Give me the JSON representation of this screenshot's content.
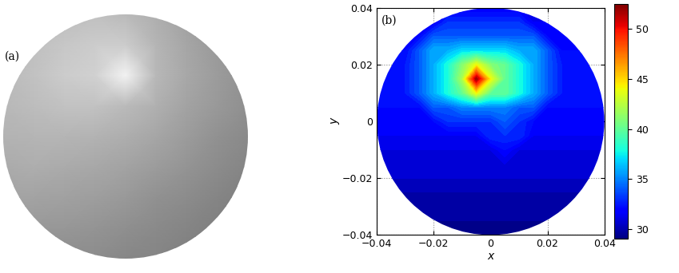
{
  "chart_data": [
    {
      "type": "image",
      "title": "(a)",
      "clim": [
        0,
        1
      ],
      "cells": [
        [
          0.55,
          0.55,
          0.55,
          0.55,
          0.53,
          0.52,
          0.5,
          0.48,
          0.47
        ],
        [
          0.6,
          0.6,
          0.59,
          0.58,
          0.56,
          0.54,
          0.52,
          0.5,
          0.48
        ],
        [
          0.64,
          0.64,
          0.63,
          0.62,
          0.6,
          0.57,
          0.55,
          0.52,
          0.5
        ],
        [
          0.67,
          0.68,
          0.67,
          0.66,
          0.64,
          0.61,
          0.58,
          0.55,
          0.52
        ],
        [
          0.7,
          0.71,
          0.71,
          0.7,
          0.68,
          0.65,
          0.61,
          0.57,
          0.54
        ],
        [
          0.72,
          0.74,
          0.76,
          0.76,
          0.73,
          0.69,
          0.64,
          0.6,
          0.56
        ],
        [
          0.73,
          0.76,
          0.8,
          0.82,
          0.95,
          0.72,
          0.66,
          0.61,
          0.57
        ],
        [
          0.72,
          0.75,
          0.78,
          0.8,
          0.8,
          0.71,
          0.65,
          0.6,
          0.56
        ],
        [
          0.7,
          0.72,
          0.74,
          0.75,
          0.73,
          0.68,
          0.63,
          0.58,
          0.55
        ]
      ]
    },
    {
      "type": "heatmap",
      "title": "(b)",
      "xlabel": "x",
      "ylabel": "y",
      "grid": true,
      "xlim": [
        -0.04,
        0.04
      ],
      "ylim": [
        -0.04,
        0.04
      ],
      "xticks": [
        {
          "value": -0.04,
          "label": "−0.04"
        },
        {
          "value": -0.02,
          "label": "−0.02"
        },
        0,
        0.02,
        0.04
      ],
      "yticks": [
        {
          "value": -0.04,
          "label": "−0.04"
        },
        {
          "value": -0.02,
          "label": "−0.02"
        },
        0,
        0.02,
        0.04
      ],
      "center": [
        0,
        0
      ],
      "radius": 0.04,
      "clim": [
        29,
        52.5
      ],
      "cticks": [
        30,
        35,
        40,
        45,
        50
      ],
      "x": [
        -0.04,
        -0.035,
        -0.03,
        -0.025,
        -0.02,
        -0.015,
        -0.01,
        -0.005,
        0,
        0.005,
        0.01,
        0.015,
        0.02,
        0.025,
        0.03,
        0.035,
        0.04
      ],
      "y": [
        -0.04,
        -0.035,
        -0.03,
        -0.025,
        -0.02,
        -0.015,
        -0.01,
        -0.005,
        0,
        0.005,
        0.01,
        0.015,
        0.02,
        0.025,
        0.03,
        0.035,
        0.04
      ],
      "cells": [
        [
          29.5,
          29.5,
          29.5,
          29.5,
          29.5,
          29.5,
          29.5,
          29.5,
          29.5,
          29.5,
          29.5,
          29.5,
          29.5,
          29.5,
          29.5,
          29.5,
          29.5
        ],
        [
          29.5,
          29.5,
          29.5,
          29.5,
          29.5,
          29.5,
          29.5,
          29.5,
          29.5,
          29.5,
          29.5,
          29.5,
          29.5,
          29.5,
          29.5,
          29.5,
          29.5
        ],
        [
          30,
          30,
          30,
          30,
          30,
          30,
          30,
          30,
          30,
          30,
          30,
          30,
          30,
          30,
          30,
          30,
          30
        ],
        [
          30,
          30,
          30,
          30,
          30,
          30,
          30,
          30,
          30,
          30,
          30,
          30,
          30,
          30,
          30,
          30,
          30
        ],
        [
          30.5,
          30.5,
          30.5,
          30.5,
          30.5,
          30.5,
          30.5,
          30.5,
          30.5,
          30.5,
          30.5,
          30.5,
          30.5,
          30.5,
          30.5,
          30.5,
          30.5
        ],
        [
          31,
          31,
          31,
          31,
          31,
          31,
          31,
          31,
          31,
          31,
          31,
          31,
          31,
          31,
          31,
          31,
          31
        ],
        [
          31,
          31,
          31,
          31,
          31,
          31,
          31,
          31,
          31,
          32,
          31,
          31,
          31,
          31,
          31,
          31,
          31
        ],
        [
          31.5,
          31.5,
          31.5,
          31.5,
          31.5,
          31.5,
          31.5,
          31.5,
          33,
          33,
          33,
          31.5,
          31.5,
          31.5,
          31.5,
          31.5,
          31.5
        ],
        [
          32,
          32,
          32,
          32,
          32,
          33,
          33,
          33,
          33,
          34,
          33,
          32,
          32,
          32,
          32,
          32,
          32
        ],
        [
          32,
          32,
          32,
          32,
          34,
          34,
          35,
          35,
          35,
          35,
          34,
          34,
          32,
          32,
          32,
          32,
          32
        ],
        [
          32.5,
          32.5,
          32.5,
          34,
          36,
          38,
          40,
          44,
          40,
          40,
          38,
          36,
          34,
          32.5,
          32.5,
          32.5,
          32.5
        ],
        [
          32.5,
          32.5,
          32.5,
          34,
          36,
          38,
          42,
          52,
          44,
          40,
          38,
          36,
          34,
          32.5,
          32.5,
          32.5,
          32.5
        ],
        [
          32.5,
          32.5,
          32.5,
          34,
          36,
          38,
          41,
          44,
          41,
          40,
          38,
          36,
          34,
          32.5,
          32.5,
          32.5,
          32.5
        ],
        [
          32,
          32,
          32,
          34,
          36,
          36,
          37,
          37,
          37,
          37,
          36,
          36,
          34,
          32,
          32,
          32,
          32
        ],
        [
          32,
          32,
          32,
          32,
          34,
          34,
          34,
          34,
          34,
          34,
          34,
          34,
          32,
          32,
          32,
          32,
          32
        ],
        [
          31.5,
          31.5,
          31.5,
          31.5,
          31.5,
          33,
          33,
          33,
          33,
          33,
          33,
          31.5,
          31.5,
          31.5,
          31.5,
          31.5,
          31.5
        ],
        [
          31.5,
          31.5,
          31.5,
          31.5,
          31.5,
          31.5,
          31.5,
          31.5,
          31.5,
          31.5,
          31.5,
          31.5,
          31.5,
          31.5,
          31.5,
          31.5,
          31.5
        ]
      ]
    }
  ]
}
